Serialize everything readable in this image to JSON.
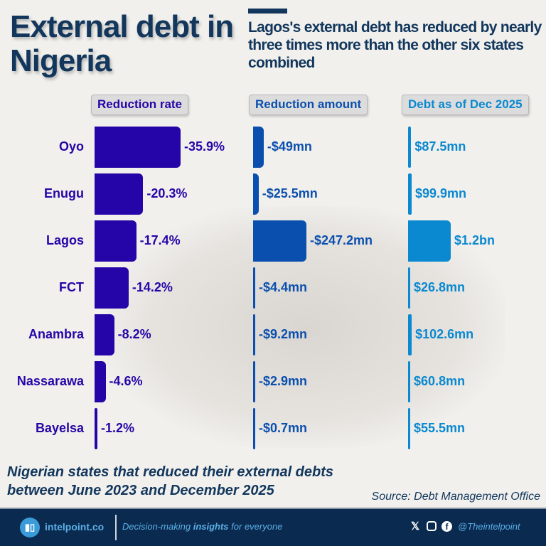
{
  "title": "External debt in Nigeria",
  "subtitle": "Lagos's external debt has reduced by nearly three times more than the other six states combined",
  "note": "Nigerian states that reduced their external debts between June 2023 and December 2025",
  "source": "Source: Debt Management Office",
  "footer": {
    "site": "intelpoint.co",
    "tag_pre": "Decision-making ",
    "tag_bold": "insights",
    "tag_post": " for everyone",
    "handle": "@Theintelpoint",
    "icons": [
      "x-icon",
      "instagram-icon",
      "facebook-icon"
    ]
  },
  "colors": {
    "rate": "#2605a8",
    "amount": "#0b4fae",
    "debt": "#0a88d0",
    "dark": "#12365c"
  },
  "chart_data": {
    "type": "bar",
    "categories": [
      "Oyo",
      "Enugu",
      "Lagos",
      "FCT",
      "Anambra",
      "Nassarawa",
      "Bayelsa"
    ],
    "series": [
      {
        "name": "Reduction rate",
        "values": [
          -35.9,
          -20.3,
          -17.4,
          -14.2,
          -8.2,
          -4.6,
          -1.2
        ],
        "labels": [
          "-35.9%",
          "-20.3%",
          "-17.4%",
          "-14.2%",
          "-8.2%",
          "-4.6%",
          "-1.2%"
        ]
      },
      {
        "name": "Reduction amount",
        "values": [
          -49,
          -25.5,
          -247.2,
          -4.4,
          -9.2,
          -2.9,
          -0.7
        ],
        "labels": [
          "-$49mn",
          "-$25.5mn",
          "-$247.2mn",
          "-$4.4mn",
          "-$9.2mn",
          "-$2.9mn",
          "-$0.7mn"
        ]
      },
      {
        "name": "Debt as of Dec 2025",
        "values": [
          87.5,
          99.9,
          1200,
          26.8,
          102.6,
          60.8,
          55.5
        ],
        "labels": [
          "$87.5mn",
          "$99.9mn",
          "$1.2bn",
          "$26.8mn",
          "$102.6mn",
          "$60.8mn",
          "$55.5mn"
        ]
      }
    ]
  }
}
